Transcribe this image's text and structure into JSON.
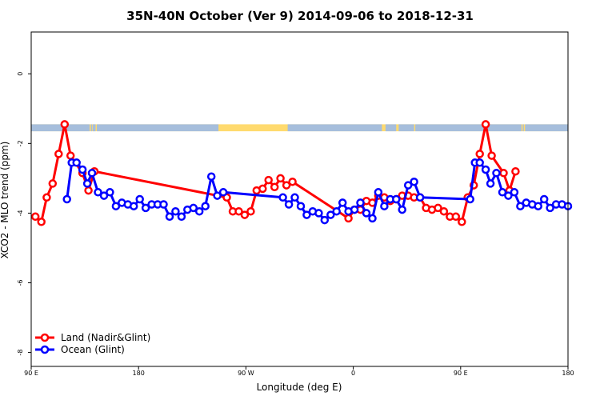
{
  "chart_data": {
    "type": "line",
    "title": "35N-40N October (Ver 9)   2014-09-06 to 2018-12-31",
    "xlabel": "Longitude (deg E)",
    "ylabel": "XCO2 - MLO trend (ppm)",
    "xlim": [
      90,
      540
    ],
    "ylim": [
      -8.4,
      1.2
    ],
    "x_ticks": [
      {
        "value": 90,
        "label": "90 E"
      },
      {
        "value": 180,
        "label": "180"
      },
      {
        "value": 270,
        "label": "90 W"
      },
      {
        "value": 360,
        "label": "0"
      },
      {
        "value": 450,
        "label": "90 E"
      },
      {
        "value": 540,
        "label": "180"
      }
    ],
    "y_ticks": [
      {
        "value": 0,
        "label": "0"
      },
      {
        "value": -2,
        "label": "-2"
      },
      {
        "value": -4,
        "label": "-4"
      },
      {
        "value": -6,
        "label": "-6"
      },
      {
        "value": -8,
        "label": "-8"
      }
    ],
    "grid": false,
    "legend_position": "bottom-left",
    "land_ocean_band": {
      "y_range": [
        -1.65,
        -1.45
      ],
      "land_color": "#FFDA6E",
      "ocean_color": "#A6BEDC",
      "ocean_intervals": [
        [
          90,
          139
        ],
        [
          140,
          141
        ],
        [
          141.5,
          144
        ],
        [
          145,
          247
        ],
        [
          305,
          384
        ],
        [
          387,
          396
        ],
        [
          398,
          411
        ],
        [
          412,
          501
        ],
        [
          502,
          503
        ],
        [
          504,
          540
        ]
      ]
    },
    "series": [
      {
        "name": "Land (Nadir&Glint)",
        "color": "#FF0000",
        "x": [
          93.5,
          98.5,
          103,
          108,
          113,
          118,
          123,
          133,
          138,
          143,
          254,
          259,
          264,
          269,
          274,
          279,
          284,
          289,
          294,
          299,
          304,
          309,
          356,
          361,
          366,
          371,
          376,
          381,
          386,
          391,
          396,
          401,
          406,
          411,
          416,
          421,
          426,
          431,
          436,
          441,
          446,
          451,
          456,
          461,
          466,
          471,
          476,
          486,
          491,
          496
        ],
        "values": [
          -4.1,
          -4.25,
          -3.55,
          -3.15,
          -2.3,
          -1.45,
          -2.35,
          -2.85,
          -3.35,
          -2.8,
          -3.55,
          -3.95,
          -3.95,
          -4.05,
          -3.95,
          -3.35,
          -3.3,
          -3.05,
          -3.25,
          -3.0,
          -3.2,
          -3.1,
          -4.15,
          -3.9,
          -3.9,
          -3.65,
          -3.7,
          -3.5,
          -3.55,
          -3.65,
          -3.6,
          -3.5,
          -3.5,
          -3.55,
          -3.55,
          -3.85,
          -3.9,
          -3.85,
          -3.95,
          -4.1,
          -4.1,
          -4.25,
          -3.55,
          -3.2,
          -2.3,
          -1.45,
          -2.35,
          -2.85,
          -3.35,
          -2.8
        ]
      },
      {
        "name": "Ocean (Glint)",
        "color": "#0000FF",
        "x": [
          120,
          124,
          128,
          133,
          137,
          141,
          146,
          151,
          156,
          161,
          166,
          171,
          176,
          181,
          186,
          191,
          196,
          201,
          206,
          211,
          216,
          221,
          226,
          231,
          236,
          241,
          246,
          251,
          301,
          306,
          311,
          316,
          321,
          326,
          331,
          336,
          341,
          346,
          351,
          356,
          361,
          366,
          371,
          376,
          381,
          386,
          391,
          396,
          401,
          406,
          411,
          416,
          458,
          462,
          466,
          471,
          475,
          480,
          485,
          490,
          495,
          500,
          505,
          510,
          515,
          520,
          525,
          530,
          535,
          540
        ],
        "values": [
          -3.6,
          -2.55,
          -2.55,
          -2.75,
          -3.15,
          -2.85,
          -3.4,
          -3.5,
          -3.4,
          -3.8,
          -3.7,
          -3.75,
          -3.8,
          -3.6,
          -3.85,
          -3.75,
          -3.75,
          -3.75,
          -4.1,
          -3.95,
          -4.1,
          -3.9,
          -3.85,
          -3.95,
          -3.8,
          -2.95,
          -3.5,
          -3.4,
          -3.55,
          -3.75,
          -3.55,
          -3.8,
          -4.05,
          -3.95,
          -4.0,
          -4.2,
          -4.05,
          -3.95,
          -3.7,
          -3.95,
          -3.9,
          -3.7,
          -4.0,
          -4.15,
          -3.4,
          -3.8,
          -3.6,
          -3.6,
          -3.9,
          -3.2,
          -3.1,
          -3.55,
          -3.6,
          -2.55,
          -2.55,
          -2.75,
          -3.15,
          -2.85,
          -3.4,
          -3.5,
          -3.4,
          -3.8,
          -3.7,
          -3.75,
          -3.8,
          -3.6,
          -3.85,
          -3.75,
          -3.75,
          -3.8
        ]
      }
    ]
  }
}
